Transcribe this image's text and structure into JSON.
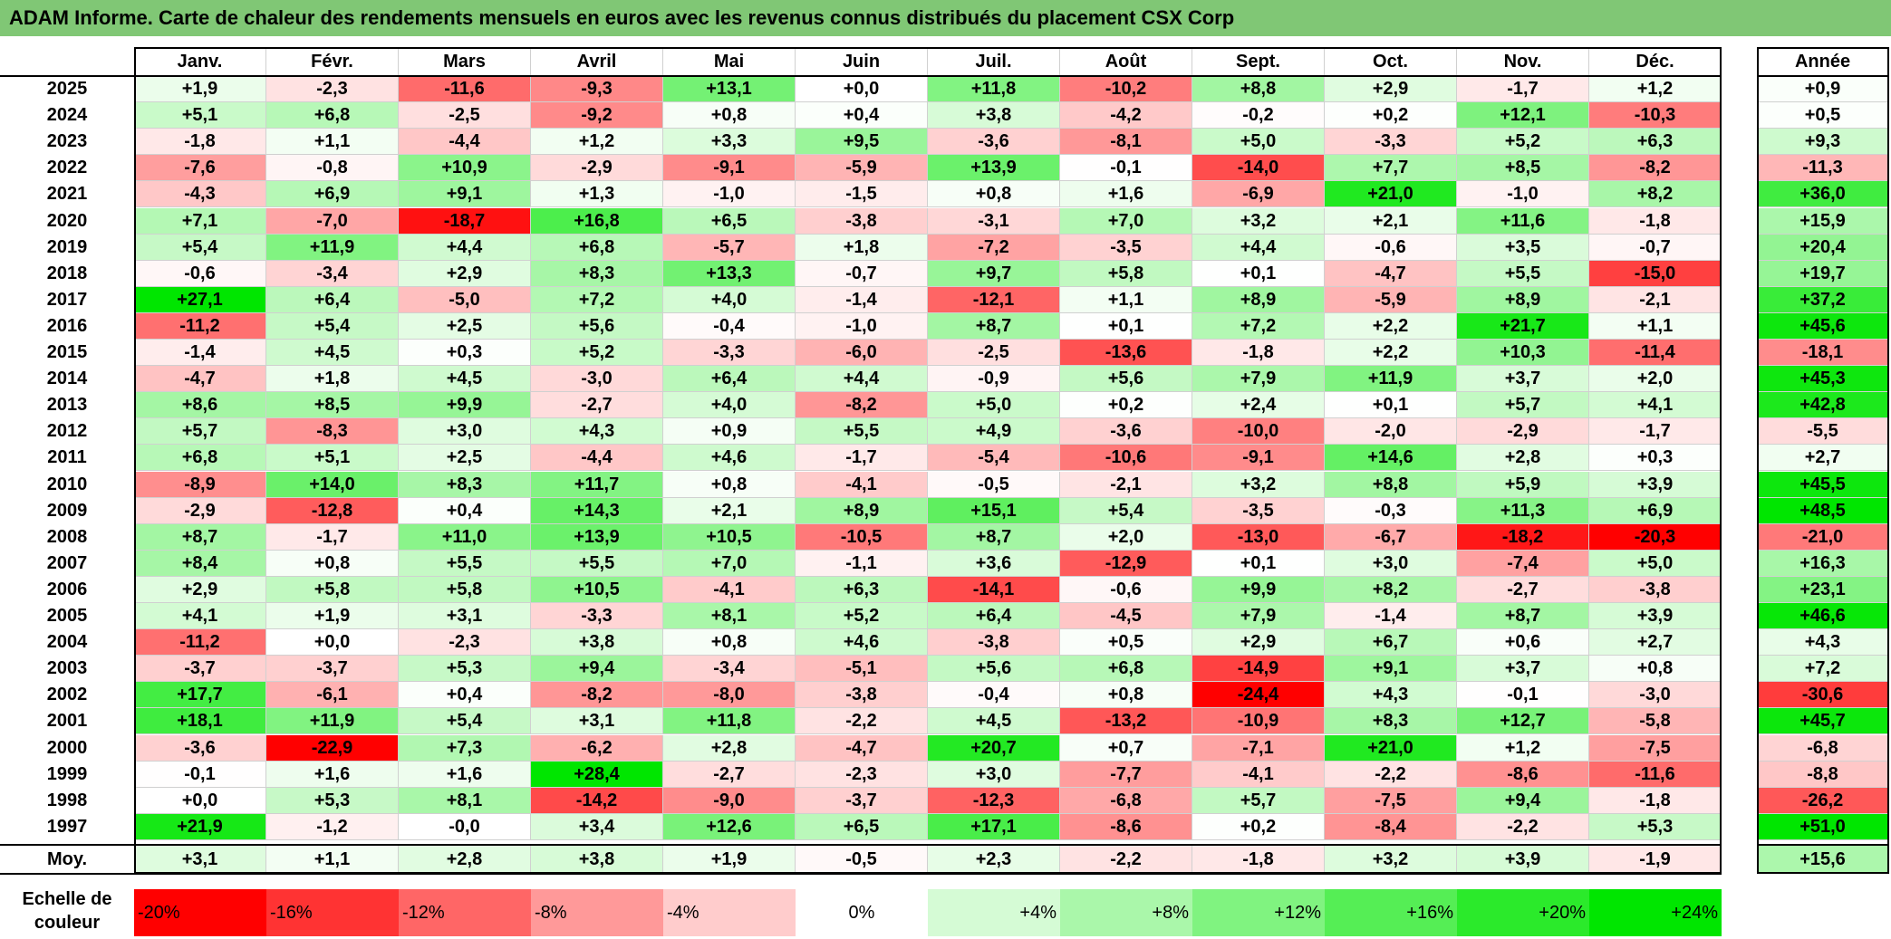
{
  "title": "ADAM Informe. Carte de chaleur des rendements mensuels en euros avec les revenus connus distribués du placement CSX Corp",
  "chart_data": {
    "type": "heatmap",
    "title": "ADAM Informe. Carte de chaleur des rendements mensuels en euros avec les revenus connus distribués du placement CSX Corp",
    "columns": [
      "Janv.",
      "Févr.",
      "Mars",
      "Avril",
      "Mai",
      "Juin",
      "Juil.",
      "Août",
      "Sept.",
      "Oct.",
      "Nov.",
      "Déc."
    ],
    "year_column_label": "Année",
    "rows": [
      {
        "year": "2025",
        "values": [
          "+1,9",
          "-2,3",
          "-11,6",
          "-9,3",
          "+13,1",
          "+0,0",
          "+11,8",
          "-10,2",
          "+8,8",
          "+2,9",
          "-1,7",
          "+1,2"
        ],
        "annual": "+0,9"
      },
      {
        "year": "2024",
        "values": [
          "+5,1",
          "+6,8",
          "-2,5",
          "-9,2",
          "+0,8",
          "+0,4",
          "+3,8",
          "-4,2",
          "-0,2",
          "+0,2",
          "+12,1",
          "-10,3"
        ],
        "annual": "+0,5"
      },
      {
        "year": "2023",
        "values": [
          "-1,8",
          "+1,1",
          "-4,4",
          "+1,2",
          "+3,3",
          "+9,5",
          "-3,6",
          "-8,1",
          "+5,0",
          "-3,3",
          "+5,2",
          "+6,3"
        ],
        "annual": "+9,3"
      },
      {
        "year": "2022",
        "values": [
          "-7,6",
          "-0,8",
          "+10,9",
          "-2,9",
          "-9,1",
          "-5,9",
          "+13,9",
          "-0,1",
          "-14,0",
          "+7,7",
          "+8,5",
          "-8,2"
        ],
        "annual": "-11,3"
      },
      {
        "year": "2021",
        "values": [
          "-4,3",
          "+6,9",
          "+9,1",
          "+1,3",
          "-1,0",
          "-1,5",
          "+0,8",
          "+1,6",
          "-6,9",
          "+21,0",
          "-1,0",
          "+8,2"
        ],
        "annual": "+36,0"
      },
      {
        "year": "2020",
        "values": [
          "+7,1",
          "-7,0",
          "-18,7",
          "+16,8",
          "+6,5",
          "-3,8",
          "-3,1",
          "+7,0",
          "+3,2",
          "+2,1",
          "+11,6",
          "-1,8"
        ],
        "annual": "+15,9"
      },
      {
        "year": "2019",
        "values": [
          "+5,4",
          "+11,9",
          "+4,4",
          "+6,8",
          "-5,7",
          "+1,8",
          "-7,2",
          "-3,5",
          "+4,4",
          "-0,6",
          "+3,5",
          "-0,7"
        ],
        "annual": "+20,4"
      },
      {
        "year": "2018",
        "values": [
          "-0,6",
          "-3,4",
          "+2,9",
          "+8,3",
          "+13,3",
          "-0,7",
          "+9,7",
          "+5,8",
          "+0,1",
          "-4,7",
          "+5,5",
          "-15,0"
        ],
        "annual": "+19,7"
      },
      {
        "year": "2017",
        "values": [
          "+27,1",
          "+6,4",
          "-5,0",
          "+7,2",
          "+4,0",
          "-1,4",
          "-12,1",
          "+1,1",
          "+8,9",
          "-5,9",
          "+8,9",
          "-2,1"
        ],
        "annual": "+37,2"
      },
      {
        "year": "2016",
        "values": [
          "-11,2",
          "+5,4",
          "+2,5",
          "+5,6",
          "-0,4",
          "-1,0",
          "+8,7",
          "+0,1",
          "+7,2",
          "+2,2",
          "+21,7",
          "+1,1"
        ],
        "annual": "+45,6"
      },
      {
        "year": "2015",
        "values": [
          "-1,4",
          "+4,5",
          "+0,3",
          "+5,2",
          "-3,3",
          "-6,0",
          "-2,5",
          "-13,6",
          "-1,8",
          "+2,2",
          "+10,3",
          "-11,4"
        ],
        "annual": "-18,1"
      },
      {
        "year": "2014",
        "values": [
          "-4,7",
          "+1,8",
          "+4,5",
          "-3,0",
          "+6,4",
          "+4,4",
          "-0,9",
          "+5,6",
          "+7,9",
          "+11,9",
          "+3,7",
          "+2,0"
        ],
        "annual": "+45,3"
      },
      {
        "year": "2013",
        "values": [
          "+8,6",
          "+8,5",
          "+9,9",
          "-2,7",
          "+4,0",
          "-8,2",
          "+5,0",
          "+0,2",
          "+2,4",
          "+0,1",
          "+5,7",
          "+4,1"
        ],
        "annual": "+42,8"
      },
      {
        "year": "2012",
        "values": [
          "+5,7",
          "-8,3",
          "+3,0",
          "+4,3",
          "+0,9",
          "+5,5",
          "+4,9",
          "-3,6",
          "-10,0",
          "-2,0",
          "-2,9",
          "-1,7"
        ],
        "annual": "-5,5"
      },
      {
        "year": "2011",
        "values": [
          "+6,8",
          "+5,1",
          "+2,5",
          "-4,4",
          "+4,6",
          "-1,7",
          "-5,4",
          "-10,6",
          "-9,1",
          "+14,6",
          "+2,8",
          "+0,3"
        ],
        "annual": "+2,7"
      },
      {
        "year": "2010",
        "values": [
          "-8,9",
          "+14,0",
          "+8,3",
          "+11,7",
          "+0,8",
          "-4,1",
          "-0,5",
          "-2,1",
          "+3,2",
          "+8,8",
          "+5,9",
          "+3,9"
        ],
        "annual": "+45,5"
      },
      {
        "year": "2009",
        "values": [
          "-2,9",
          "-12,8",
          "+0,4",
          "+14,3",
          "+2,1",
          "+8,9",
          "+15,1",
          "+5,4",
          "-3,5",
          "-0,3",
          "+11,3",
          "+6,9"
        ],
        "annual": "+48,5"
      },
      {
        "year": "2008",
        "values": [
          "+8,7",
          "-1,7",
          "+11,0",
          "+13,9",
          "+10,5",
          "-10,5",
          "+8,7",
          "+2,0",
          "-13,0",
          "-6,7",
          "-18,2",
          "-20,3"
        ],
        "annual": "-21,0"
      },
      {
        "year": "2007",
        "values": [
          "+8,4",
          "+0,8",
          "+5,5",
          "+5,5",
          "+7,0",
          "-1,1",
          "+3,6",
          "-12,9",
          "+0,1",
          "+3,0",
          "-7,4",
          "+5,0"
        ],
        "annual": "+16,3"
      },
      {
        "year": "2006",
        "values": [
          "+2,9",
          "+5,8",
          "+5,8",
          "+10,5",
          "-4,1",
          "+6,3",
          "-14,1",
          "-0,6",
          "+9,9",
          "+8,2",
          "-2,7",
          "-3,8"
        ],
        "annual": "+23,1"
      },
      {
        "year": "2005",
        "values": [
          "+4,1",
          "+1,9",
          "+3,1",
          "-3,3",
          "+8,1",
          "+5,2",
          "+6,4",
          "-4,5",
          "+7,9",
          "-1,4",
          "+8,7",
          "+3,9"
        ],
        "annual": "+46,6"
      },
      {
        "year": "2004",
        "values": [
          "-11,2",
          "+0,0",
          "-2,3",
          "+3,8",
          "+0,8",
          "+4,6",
          "-3,8",
          "+0,5",
          "+2,9",
          "+6,7",
          "+0,6",
          "+2,7"
        ],
        "annual": "+4,3"
      },
      {
        "year": "2003",
        "values": [
          "-3,7",
          "-3,7",
          "+5,3",
          "+9,4",
          "-3,4",
          "-5,1",
          "+5,6",
          "+6,8",
          "-14,9",
          "+9,1",
          "+3,7",
          "+0,8"
        ],
        "annual": "+7,2"
      },
      {
        "year": "2002",
        "values": [
          "+17,7",
          "-6,1",
          "+0,4",
          "-8,2",
          "-8,0",
          "-3,8",
          "-0,4",
          "+0,8",
          "-24,4",
          "+4,3",
          "-0,1",
          "-3,0"
        ],
        "annual": "-30,6"
      },
      {
        "year": "2001",
        "values": [
          "+18,1",
          "+11,9",
          "+5,4",
          "+3,1",
          "+11,8",
          "-2,2",
          "+4,5",
          "-13,2",
          "-10,9",
          "+8,3",
          "+12,7",
          "-5,8"
        ],
        "annual": "+45,7"
      },
      {
        "year": "2000",
        "values": [
          "-3,6",
          "-22,9",
          "+7,3",
          "-6,2",
          "+2,8",
          "-4,7",
          "+20,7",
          "+0,7",
          "-7,1",
          "+21,0",
          "+1,2",
          "-7,5"
        ],
        "annual": "-6,8"
      },
      {
        "year": "1999",
        "values": [
          "-0,1",
          "+1,6",
          "+1,6",
          "+28,4",
          "-2,7",
          "-2,3",
          "+3,0",
          "-7,7",
          "-4,1",
          "-2,2",
          "-8,6",
          "-11,6"
        ],
        "annual": "-8,8"
      },
      {
        "year": "1998",
        "values": [
          "+0,0",
          "+5,3",
          "+8,1",
          "-14,2",
          "-9,0",
          "-3,7",
          "-12,3",
          "-6,8",
          "+5,7",
          "-7,5",
          "+9,4",
          "-1,8"
        ],
        "annual": "-26,2"
      },
      {
        "year": "1997",
        "values": [
          "+21,9",
          "-1,2",
          "-0,0",
          "+3,4",
          "+12,6",
          "+6,5",
          "+17,1",
          "-8,6",
          "+0,2",
          "-8,4",
          "-2,2",
          "+5,3"
        ],
        "annual": "+51,0"
      }
    ],
    "average": {
      "label": "Moy.",
      "values": [
        "+3,1",
        "+1,1",
        "+2,8",
        "+3,8",
        "+1,9",
        "-0,5",
        "+2,3",
        "-2,2",
        "-1,8",
        "+3,2",
        "+3,9",
        "-1,9"
      ],
      "annual": "+15,6"
    },
    "legend": {
      "title": "Echelle de couleur",
      "steps": [
        "-20%",
        "-16%",
        "-12%",
        "-8%",
        "-4%",
        "0%",
        "+4%",
        "+8%",
        "+12%",
        "+16%",
        "+20%",
        "+24%"
      ],
      "step_values": [
        -20,
        -16,
        -12,
        -8,
        -4,
        0,
        4,
        8,
        12,
        16,
        20,
        24
      ]
    },
    "colors": {
      "negative_max": "#ff0000",
      "neutral": "#ffffff",
      "positive_max": "#00e600",
      "title_bar": "#80c775"
    }
  }
}
